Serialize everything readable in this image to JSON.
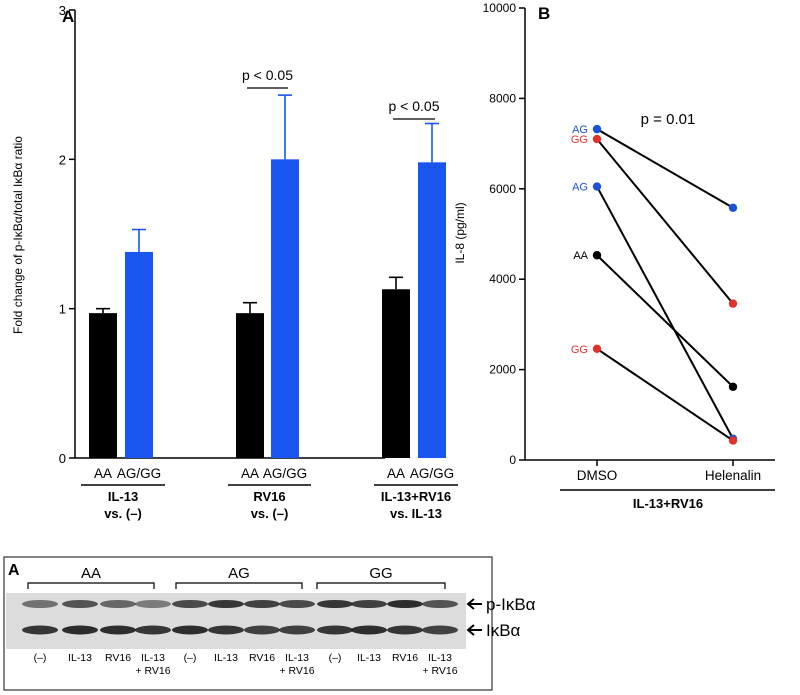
{
  "colors": {
    "aa": "#000000",
    "ag_gg": "#1a55f0",
    "ag_dot": "#1a52d6",
    "gg_dot": "#e0322a",
    "aa_dot": "#000000",
    "blot_bg": "#dcdcdc"
  },
  "chart_data": [
    {
      "type": "bar",
      "panel_label": "A",
      "ylabel": "Fold change of p-IκBα/total IκBα ratio",
      "ylim": [
        0,
        3
      ],
      "yticks": [
        "0",
        "1",
        "2",
        "3"
      ],
      "categories": [
        "AA",
        "AG/GG",
        "AA",
        "AG/GG",
        "AA",
        "AG/GG"
      ],
      "values": [
        0.97,
        1.38,
        0.97,
        2.0,
        1.13,
        1.98
      ],
      "errors": [
        0.03,
        0.15,
        0.07,
        0.43,
        0.08,
        0.26
      ],
      "bar_colors": [
        "aa",
        "ag_gg",
        "aa",
        "ag_gg",
        "aa",
        "ag_gg"
      ],
      "groups": [
        {
          "line1": "IL-13",
          "line2": "vs. (–)"
        },
        {
          "line1": "RV16",
          "line2": "vs. (–)"
        },
        {
          "line1": "IL-13+RV16",
          "line2": "vs. IL-13"
        }
      ],
      "annotations": [
        {
          "text": "p < 0.05",
          "between": [
            2,
            3
          ]
        },
        {
          "text": "p < 0.05",
          "between": [
            4,
            5
          ]
        }
      ]
    },
    {
      "type": "line",
      "panel_label": "B",
      "ylabel": "IL-8 (pg/ml)",
      "ylim": [
        0,
        10000
      ],
      "yticks": [
        "0",
        "2000",
        "4000",
        "6000",
        "8000",
        "10000"
      ],
      "categories": [
        "DMSO",
        "Helenalin"
      ],
      "group_label": "IL-13+RV16",
      "p_value_text": "p = 0.01",
      "series": [
        {
          "name": "AG",
          "color": "ag_dot",
          "values": [
            7320,
            5580
          ]
        },
        {
          "name": "GG",
          "color": "gg_dot",
          "values": [
            7100,
            3460
          ]
        },
        {
          "name": "AG",
          "color": "ag_dot",
          "values": [
            6050,
            470
          ]
        },
        {
          "name": "AA",
          "color": "aa_dot",
          "values": [
            4530,
            1620
          ]
        },
        {
          "name": "GG",
          "color": "gg_dot",
          "values": [
            2460,
            430
          ]
        }
      ]
    }
  ],
  "blot": {
    "panel_label": "A",
    "groups": [
      "AA",
      "AG",
      "GG"
    ],
    "rows": [
      "p-IκBα",
      "IκBα"
    ],
    "lanes": [
      {
        "l1": "(–)",
        "l2": ""
      },
      {
        "l1": "IL-13",
        "l2": ""
      },
      {
        "l1": "RV16",
        "l2": ""
      },
      {
        "l1": "IL-13",
        "l2": "+ RV16"
      },
      {
        "l1": "(–)",
        "l2": ""
      },
      {
        "l1": "IL-13",
        "l2": ""
      },
      {
        "l1": "RV16",
        "l2": ""
      },
      {
        "l1": "IL-13",
        "l2": "+ RV16"
      },
      {
        "l1": "(–)",
        "l2": ""
      },
      {
        "l1": "IL-13",
        "l2": ""
      },
      {
        "l1": "RV16",
        "l2": ""
      },
      {
        "l1": "IL-13",
        "l2": "+ RV16"
      }
    ]
  }
}
